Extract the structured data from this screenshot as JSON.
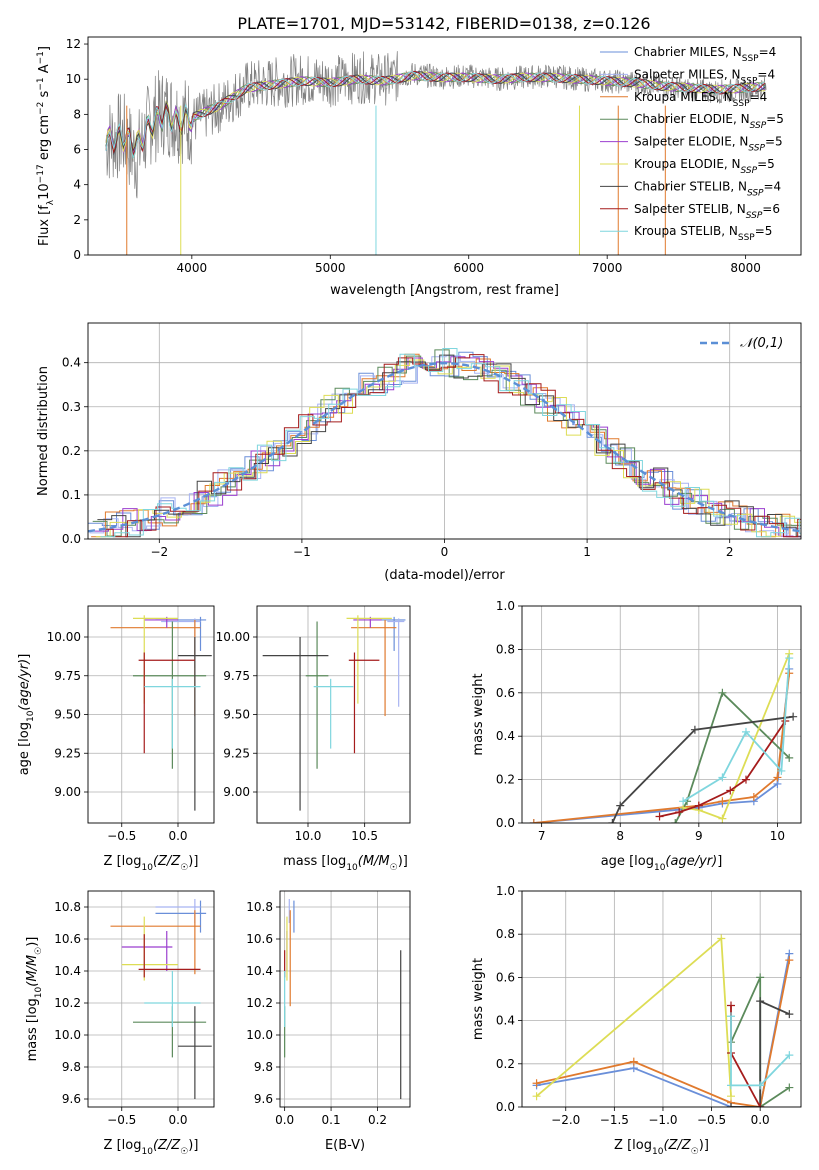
{
  "title": "PLATE=1701, MJD=53142, FIBERID=0138, z=0.126",
  "colors": {
    "Chabrier MILES": "#6a8fd9",
    "Salpeter MILES": "#a8b4f2",
    "Kroupa MILES": "#e07a2e",
    "Chabrier ELODIE": "#5b8a5b",
    "Salpeter ELODIE": "#9b3fcf",
    "Kroupa ELODIE": "#dddd55",
    "Chabrier STELIB": "#444444",
    "Salpeter STELIB": "#a51c1c",
    "Kroupa STELIB": "#7fd6de"
  },
  "chart_data": [
    {
      "id": "spectrum",
      "type": "line",
      "title": "PLATE=1701, MJD=53142, FIBERID=0138, z=0.126",
      "xlabel": "wavelength [Angstrom, rest frame]",
      "ylabel": "Flux [f_λ 10^-17 erg cm^-2 s^-1 A^-1]",
      "xlim": [
        3250,
        8400
      ],
      "ylim": [
        0,
        12.4
      ],
      "xticks": [
        4000,
        5000,
        6000,
        7000,
        8000
      ],
      "yticks": [
        0,
        2,
        4,
        6,
        8,
        10,
        12
      ],
      "grid": false,
      "legend": "right",
      "data_gray": {
        "name": "data",
        "x": [
          3380,
          3500,
          3600,
          3700,
          3800,
          3900,
          4000,
          4200,
          4400,
          4600,
          4800,
          5000,
          5200,
          5400,
          5600,
          5800,
          6000,
          6200,
          6400,
          6600,
          6800,
          7000,
          7200,
          7400,
          7600,
          7800,
          8000,
          8150
        ],
        "y": [
          6.5,
          6.8,
          5.5,
          7.6,
          8.2,
          7.8,
          7.6,
          8.4,
          9.6,
          9.8,
          10.0,
          9.9,
          10.1,
          10.0,
          10.3,
          10.1,
          10.2,
          10.0,
          10.1,
          10.2,
          10.0,
          9.9,
          9.8,
          9.6,
          9.4,
          9.3,
          9.4,
          9.5
        ]
      },
      "series": [
        {
          "name": "Chabrier MILES",
          "nssp": "4"
        },
        {
          "name": "Salpeter MILES",
          "nssp": "4"
        },
        {
          "name": "Kroupa MILES",
          "nssp": "4"
        },
        {
          "name": "Chabrier ELODIE",
          "nssp": "5"
        },
        {
          "name": "Salpeter ELODIE",
          "nssp": "5"
        },
        {
          "name": "Kroupa ELODIE",
          "nssp": "5"
        },
        {
          "name": "Chabrier STELIB",
          "nssp": "4"
        },
        {
          "name": "Salpeter STELIB",
          "nssp": "6"
        },
        {
          "name": "Kroupa STELIB",
          "nssp": "5"
        }
      ],
      "model_curve": {
        "x": [
          3380,
          3500,
          3600,
          3700,
          3800,
          3900,
          4000,
          4200,
          4400,
          4600,
          4800,
          5000,
          5200,
          5400,
          5600,
          5800,
          6000,
          6200,
          6400,
          6600,
          6800,
          7000,
          7200,
          7400,
          7600,
          7800,
          8000,
          8150
        ],
        "y": [
          6.5,
          6.7,
          6.2,
          7.4,
          8.0,
          7.6,
          7.8,
          8.5,
          9.5,
          9.7,
          9.9,
          9.8,
          10.0,
          9.9,
          10.2,
          10.1,
          10.1,
          10.0,
          10.1,
          10.1,
          10.0,
          9.9,
          9.8,
          9.6,
          9.5,
          9.4,
          9.5,
          9.6
        ]
      }
    },
    {
      "id": "residuals",
      "type": "step",
      "xlabel": "(data-model)/error",
      "ylabel": "Normed distribution",
      "xlim": [
        -2.5,
        2.5
      ],
      "ylim": [
        0,
        0.49
      ],
      "xticks": [
        -2,
        -1,
        0,
        1,
        2
      ],
      "yticks": [
        0.0,
        0.1,
        0.2,
        0.3,
        0.4
      ],
      "grid": true,
      "legend": "top-right",
      "reference": {
        "name": "𝒩(0,1)",
        "mean": 0,
        "sigma": 1
      }
    },
    {
      "id": "age-vs-Z",
      "type": "errorbar",
      "xlabel": "Z [log10(Z/Z☉)]",
      "ylabel": "age [log10(age/yr)]",
      "xlim": [
        -0.8,
        0.32
      ],
      "ylim": [
        8.8,
        10.2
      ],
      "xticks": [
        -0.5,
        0.0
      ],
      "yticks": [
        9.0,
        9.25,
        9.5,
        9.75,
        10.0
      ],
      "grid": true,
      "points": [
        {
          "series": "Chabrier MILES",
          "x": 0.2,
          "y": 10.11,
          "xerr": [
            0.4,
            0.05
          ],
          "yerr": [
            0.2,
            0.02
          ]
        },
        {
          "series": "Salpeter MILES",
          "x": 0.15,
          "y": 10.1,
          "xerr": [
            0.3,
            0.05
          ],
          "yerr": [
            0.3,
            0.02
          ]
        },
        {
          "series": "Kroupa MILES",
          "x": 0.15,
          "y": 10.06,
          "xerr": [
            0.75,
            0.05
          ],
          "yerr": [
            0.57,
            0.05
          ]
        },
        {
          "series": "Chabrier ELODIE",
          "x": -0.05,
          "y": 9.75,
          "xerr": [
            0.35,
            0.3
          ],
          "yerr": [
            0.6,
            0.35
          ]
        },
        {
          "series": "Salpeter ELODIE",
          "x": -0.1,
          "y": 10.11,
          "xerr": [
            0.2,
            0.1
          ],
          "yerr": [
            0.05,
            0.02
          ]
        },
        {
          "series": "Kroupa ELODIE",
          "x": -0.3,
          "y": 10.12,
          "xerr": [
            0.1,
            0.3
          ],
          "yerr": [
            0.55,
            0.02
          ]
        },
        {
          "series": "Chabrier STELIB",
          "x": 0.15,
          "y": 9.88,
          "xerr": [
            0.15,
            0.15
          ],
          "yerr": [
            1.0,
            0.12
          ]
        },
        {
          "series": "Salpeter STELIB",
          "x": -0.3,
          "y": 9.85,
          "xerr": [
            0.05,
            0.45
          ],
          "yerr": [
            0.6,
            0.05
          ]
        },
        {
          "series": "Kroupa STELIB",
          "x": -0.05,
          "y": 9.68,
          "xerr": [
            0.25,
            0.25
          ],
          "yerr": [
            0.4,
            0.05
          ]
        }
      ]
    },
    {
      "id": "age-vs-mass",
      "type": "errorbar",
      "xlabel": "mass [log10(M/M☉)]",
      "ylabel": "",
      "xlim": [
        9.55,
        10.9
      ],
      "ylim": [
        8.8,
        10.2
      ],
      "xticks": [
        10.0,
        10.5
      ],
      "yticks": [
        9.0,
        9.25,
        9.5,
        9.75,
        10.0
      ],
      "grid": true,
      "points": [
        {
          "series": "Chabrier MILES",
          "x": 10.76,
          "y": 10.11,
          "xerr": [
            0.12,
            0.1
          ],
          "yerr": [
            0.2,
            0.02
          ]
        },
        {
          "series": "Salpeter MILES",
          "x": 10.8,
          "y": 10.1,
          "xerr": [
            0.1,
            0.05
          ],
          "yerr": [
            0.55,
            0.02
          ]
        },
        {
          "series": "Kroupa MILES",
          "x": 10.68,
          "y": 10.06,
          "xerr": [
            0.3,
            0.1
          ],
          "yerr": [
            0.57,
            0.05
          ]
        },
        {
          "series": "Chabrier ELODIE",
          "x": 10.08,
          "y": 9.75,
          "xerr": [
            0.1,
            0.1
          ],
          "yerr": [
            0.6,
            0.35
          ]
        },
        {
          "series": "Salpeter ELODIE",
          "x": 10.55,
          "y": 10.11,
          "xerr": [
            0.15,
            0.1
          ],
          "yerr": [
            0.05,
            0.02
          ]
        },
        {
          "series": "Kroupa ELODIE",
          "x": 10.44,
          "y": 10.12,
          "xerr": [
            0.1,
            0.3
          ],
          "yerr": [
            0.55,
            0.02
          ]
        },
        {
          "series": "Chabrier STELIB",
          "x": 9.93,
          "y": 9.88,
          "xerr": [
            0.33,
            0.25
          ],
          "yerr": [
            1.0,
            0.12
          ]
        },
        {
          "series": "Salpeter STELIB",
          "x": 10.41,
          "y": 9.85,
          "xerr": [
            0.05,
            0.22
          ],
          "yerr": [
            0.6,
            0.05
          ]
        },
        {
          "series": "Kroupa STELIB",
          "x": 10.2,
          "y": 9.68,
          "xerr": [
            0.15,
            0.2
          ],
          "yerr": [
            0.4,
            0.05
          ]
        }
      ]
    },
    {
      "id": "weight-vs-age",
      "type": "line",
      "xlabel": "age [log10(age/yr)]",
      "ylabel": "mass weight",
      "xlim": [
        6.75,
        10.3
      ],
      "ylim": [
        0,
        1
      ],
      "xticks": [
        7,
        8,
        9,
        10
      ],
      "yticks": [
        0.0,
        0.2,
        0.4,
        0.6,
        0.8,
        1.0
      ],
      "grid": true,
      "series": [
        {
          "name": "Chabrier MILES",
          "x": [
            6.9,
            9.0,
            9.3,
            9.7,
            10.0,
            10.15
          ],
          "y": [
            0.0,
            0.07,
            0.09,
            0.1,
            0.18,
            0.71
          ]
        },
        {
          "name": "Kroupa MILES",
          "x": [
            6.9,
            9.0,
            9.3,
            9.7,
            10.0,
            10.15
          ],
          "y": [
            0.0,
            0.08,
            0.1,
            0.12,
            0.21,
            0.69
          ]
        },
        {
          "name": "Chabrier ELODIE",
          "x": [
            8.7,
            8.85,
            9.3,
            10.15
          ],
          "y": [
            0.0,
            0.1,
            0.6,
            0.3
          ]
        },
        {
          "name": "Kroupa ELODIE",
          "x": [
            8.8,
            9.0,
            9.3,
            10.15
          ],
          "y": [
            0.07,
            0.06,
            0.02,
            0.78
          ]
        },
        {
          "name": "Chabrier STELIB",
          "x": [
            7.9,
            8.0,
            8.95,
            10.2
          ],
          "y": [
            0.0,
            0.08,
            0.43,
            0.49
          ]
        },
        {
          "name": "Salpeter STELIB",
          "x": [
            8.5,
            8.75,
            9.0,
            9.4,
            9.6,
            10.1
          ],
          "y": [
            0.03,
            0.05,
            0.08,
            0.15,
            0.2,
            0.47
          ]
        },
        {
          "name": "Kroupa STELIB",
          "x": [
            8.8,
            9.3,
            9.6,
            10.05,
            10.15
          ],
          "y": [
            0.1,
            0.21,
            0.42,
            0.24,
            0.76
          ]
        }
      ]
    },
    {
      "id": "mass-vs-Z",
      "type": "errorbar",
      "xlabel": "Z [log10(Z/Z☉)]",
      "ylabel": "mass [log10(M/M☉)]",
      "xlim": [
        -0.8,
        0.32
      ],
      "ylim": [
        9.55,
        10.9
      ],
      "xticks": [
        -0.5,
        0.0
      ],
      "yticks": [
        9.6,
        9.8,
        10.0,
        10.2,
        10.4,
        10.6,
        10.8
      ],
      "grid": true,
      "points": [
        {
          "series": "Chabrier MILES",
          "x": 0.2,
          "y": 10.76,
          "xerr": [
            0.4,
            0.05
          ],
          "yerr": [
            0.12,
            0.08
          ]
        },
        {
          "series": "Salpeter MILES",
          "x": 0.15,
          "y": 10.8,
          "xerr": [
            0.35,
            0.05
          ],
          "yerr": [
            0.1,
            0.05
          ]
        },
        {
          "series": "Kroupa MILES",
          "x": 0.15,
          "y": 10.68,
          "xerr": [
            0.75,
            0.05
          ],
          "yerr": [
            0.3,
            0.1
          ]
        },
        {
          "series": "Chabrier ELODIE",
          "x": -0.05,
          "y": 10.08,
          "xerr": [
            0.35,
            0.3
          ],
          "yerr": [
            0.22,
            0.1
          ]
        },
        {
          "series": "Salpeter ELODIE",
          "x": -0.1,
          "y": 10.55,
          "xerr": [
            0.4,
            0.05
          ],
          "yerr": [
            0.15,
            0.1
          ]
        },
        {
          "series": "Kroupa ELODIE",
          "x": -0.3,
          "y": 10.44,
          "xerr": [
            0.2,
            0.3
          ],
          "yerr": [
            0.1,
            0.3
          ]
        },
        {
          "series": "Chabrier STELIB",
          "x": 0.15,
          "y": 9.93,
          "xerr": [
            0.15,
            0.15
          ],
          "yerr": [
            0.33,
            0.25
          ]
        },
        {
          "series": "Salpeter STELIB",
          "x": -0.3,
          "y": 10.41,
          "xerr": [
            0.05,
            0.5
          ],
          "yerr": [
            0.05,
            0.22
          ]
        },
        {
          "series": "Kroupa STELIB",
          "x": -0.05,
          "y": 10.2,
          "xerr": [
            0.25,
            0.25
          ],
          "yerr": [
            0.15,
            0.2
          ]
        }
      ]
    },
    {
      "id": "mass-vs-EBV",
      "type": "errorbar",
      "xlabel": "E(B-V)",
      "ylabel": "",
      "xlim": [
        -0.01,
        0.27
      ],
      "ylim": [
        9.55,
        10.9
      ],
      "xticks": [
        0.0,
        0.1,
        0.2
      ],
      "yticks": [
        9.6,
        9.8,
        10.0,
        10.2,
        10.4,
        10.6,
        10.8
      ],
      "grid": true,
      "points": [
        {
          "series": "Chabrier MILES",
          "x": 0.02,
          "y": 10.76,
          "yerr": [
            0.12,
            0.08
          ]
        },
        {
          "series": "Salpeter MILES",
          "x": 0.01,
          "y": 10.8,
          "yerr": [
            0.1,
            0.05
          ]
        },
        {
          "series": "Kroupa MILES",
          "x": 0.012,
          "y": 10.68,
          "yerr": [
            0.5,
            0.1
          ]
        },
        {
          "series": "Chabrier ELODIE",
          "x": 0.0,
          "y": 10.08,
          "yerr": [
            0.22,
            0.1
          ]
        },
        {
          "series": "Salpeter ELODIE",
          "x": 0.005,
          "y": 10.55,
          "yerr": [
            0.15,
            0.1
          ]
        },
        {
          "series": "Kroupa ELODIE",
          "x": 0.005,
          "y": 10.44,
          "yerr": [
            0.1,
            0.3
          ]
        },
        {
          "series": "Chabrier STELIB",
          "x": 0.25,
          "y": 9.93,
          "yerr": [
            0.33,
            0.6
          ]
        },
        {
          "series": "Salpeter STELIB",
          "x": 0.0,
          "y": 10.41,
          "yerr": [
            0.05,
            0.12
          ]
        },
        {
          "series": "Kroupa STELIB",
          "x": 0.0,
          "y": 10.2,
          "yerr": [
            0.15,
            0.2
          ]
        }
      ]
    },
    {
      "id": "weight-vs-Z",
      "type": "line",
      "xlabel": "Z [log10(Z/Z☉)]",
      "ylabel": "mass weight",
      "xlim": [
        -2.45,
        0.42
      ],
      "ylim": [
        0,
        1
      ],
      "xticks": [
        -2.0,
        -1.5,
        -1.0,
        -0.5,
        0.0
      ],
      "yticks": [
        0.0,
        0.2,
        0.4,
        0.6,
        0.8,
        1.0
      ],
      "grid": true,
      "series": [
        {
          "name": "Chabrier MILES",
          "x": [
            -2.3,
            -1.3,
            -0.3,
            0.0,
            0.3
          ],
          "y": [
            0.1,
            0.18,
            0.0,
            0.0,
            0.71
          ]
        },
        {
          "name": "Kroupa MILES",
          "x": [
            -2.3,
            -1.3,
            -0.3,
            0.0,
            0.3
          ],
          "y": [
            0.11,
            0.21,
            0.02,
            0.0,
            0.68
          ]
        },
        {
          "name": "Chabrier ELODIE",
          "x": [
            -0.3,
            0.0,
            0.0,
            0.3
          ],
          "y": [
            0.3,
            0.6,
            0.0,
            0.09
          ]
        },
        {
          "name": "Kroupa ELODIE",
          "x": [
            -2.3,
            -0.4,
            -0.3
          ],
          "y": [
            0.05,
            0.78,
            0.05
          ]
        },
        {
          "name": "Chabrier STELIB",
          "x": [
            -0.3,
            0.0,
            0.0,
            0.3
          ],
          "y": [
            0.0,
            0.0,
            0.49,
            0.43
          ]
        },
        {
          "name": "Salpeter STELIB",
          "x": [
            -0.3,
            -0.3,
            0.0
          ],
          "y": [
            0.47,
            0.25,
            0.0
          ]
        },
        {
          "name": "Kroupa STELIB",
          "x": [
            -0.3,
            -0.3,
            0.0,
            0.3
          ],
          "y": [
            0.42,
            0.1,
            0.1,
            0.24
          ]
        }
      ]
    }
  ]
}
